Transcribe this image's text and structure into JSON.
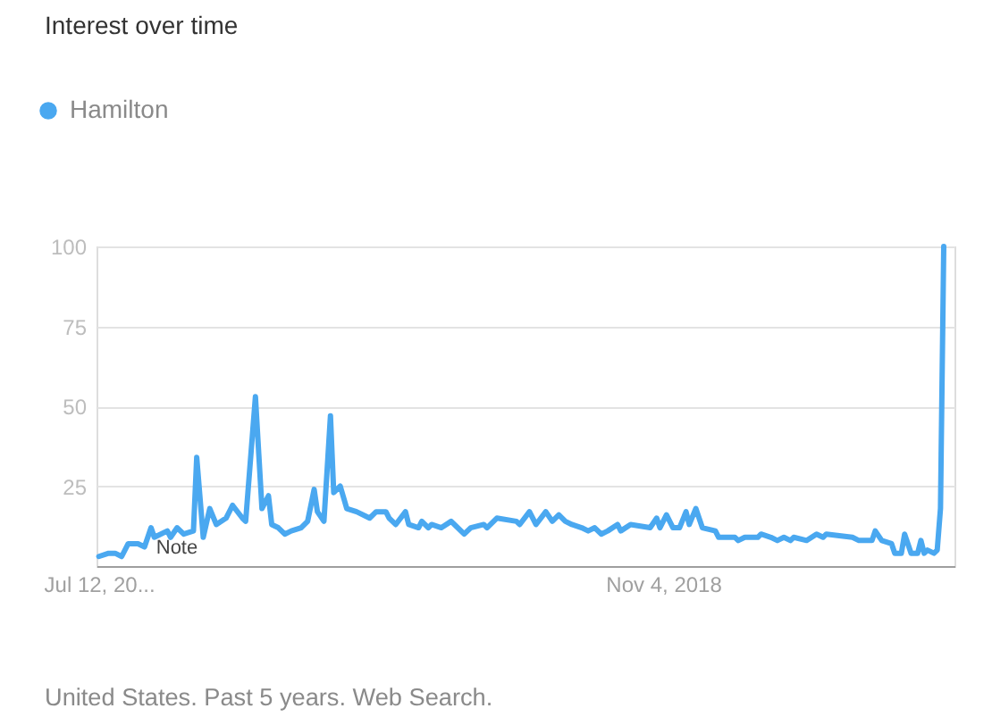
{
  "chart_data": {
    "type": "line",
    "title": "Interest over time",
    "series": [
      {
        "name": "Hamilton",
        "color": "#4aa8f0",
        "x": [
          "2015-07-12",
          "2015-08-02",
          "2015-08-16",
          "2015-08-30",
          "2015-09-13",
          "2015-10-04",
          "2015-10-18",
          "2015-11-01",
          "2015-11-08",
          "2015-12-06",
          "2015-12-13",
          "2015-12-27",
          "2016-01-10",
          "2016-01-31",
          "2016-02-07",
          "2016-02-21",
          "2016-03-06",
          "2016-03-20",
          "2016-04-10",
          "2016-04-24",
          "2016-05-15",
          "2016-05-22",
          "2016-06-12",
          "2016-06-26",
          "2016-07-10",
          "2016-07-17",
          "2016-07-31",
          "2016-08-14",
          "2016-08-28",
          "2016-09-18",
          "2016-10-02",
          "2016-10-16",
          "2016-10-23",
          "2016-11-06",
          "2016-11-20",
          "2016-11-27",
          "2016-12-11",
          "2016-12-25",
          "2017-01-15",
          "2017-02-12",
          "2017-02-26",
          "2017-03-19",
          "2017-03-26",
          "2017-04-09",
          "2017-04-30",
          "2017-05-07",
          "2017-05-28",
          "2017-06-04",
          "2017-06-18",
          "2017-06-25",
          "2017-07-16",
          "2017-08-06",
          "2017-09-03",
          "2017-09-17",
          "2017-10-15",
          "2017-10-22",
          "2017-11-12",
          "2017-12-24",
          "2017-12-31",
          "2018-01-21",
          "2018-02-04",
          "2018-02-25",
          "2018-03-11",
          "2018-03-25",
          "2018-04-08",
          "2018-04-22",
          "2018-05-13",
          "2018-05-27",
          "2018-06-10",
          "2018-06-24",
          "2018-07-08",
          "2018-07-29",
          "2018-08-05",
          "2018-08-26",
          "2018-10-07",
          "2018-10-21",
          "2018-10-28",
          "2018-11-11",
          "2018-11-25",
          "2018-12-09",
          "2018-12-23",
          "2018-12-30",
          "2019-01-13",
          "2019-01-27",
          "2019-02-24",
          "2019-03-03",
          "2019-04-07",
          "2019-04-14",
          "2019-04-28",
          "2019-05-26",
          "2019-06-02",
          "2019-06-23",
          "2019-07-07",
          "2019-07-21",
          "2019-08-04",
          "2019-08-11",
          "2019-09-08",
          "2019-09-29",
          "2019-10-13",
          "2019-10-20",
          "2019-12-15",
          "2019-12-29",
          "2020-01-26",
          "2020-02-02",
          "2020-02-16",
          "2020-03-08",
          "2020-03-15",
          "2020-03-29",
          "2020-04-05",
          "2020-04-19",
          "2020-05-03",
          "2020-05-10",
          "2020-05-17",
          "2020-05-24",
          "2020-06-07",
          "2020-06-14",
          "2020-06-21",
          "2020-06-28"
        ],
        "values": [
          3,
          4,
          4,
          3,
          7,
          7,
          6,
          12,
          9,
          11,
          9,
          12,
          10,
          11,
          34,
          9,
          18,
          13,
          15,
          19,
          15,
          14,
          53,
          18,
          22,
          13,
          12,
          10,
          11,
          12,
          14,
          24,
          17,
          14,
          47,
          23,
          25,
          18,
          17,
          15,
          17,
          17,
          15,
          13,
          17,
          13,
          12,
          14,
          12,
          13,
          12,
          14,
          10,
          12,
          13,
          12,
          15,
          14,
          13,
          17,
          13,
          17,
          14,
          16,
          14,
          13,
          12,
          11,
          12,
          10,
          11,
          13,
          11,
          13,
          12,
          15,
          12,
          16,
          12,
          12,
          17,
          13,
          18,
          12,
          11,
          9,
          9,
          8,
          9,
          9,
          10,
          9,
          8,
          9,
          8,
          9,
          8,
          10,
          9,
          10,
          9,
          8,
          8,
          11,
          8,
          7,
          4,
          4,
          10,
          4,
          4,
          8,
          4,
          5,
          4,
          5,
          18,
          100
        ]
      }
    ],
    "xlim": [
      "2015-07-07",
      "2020-07-21"
    ],
    "xticks": [
      {
        "value": "2015-07-12",
        "label": "Jul 12, 20..."
      },
      {
        "value": "2018-11-04",
        "label": "Nov 4, 2018"
      }
    ],
    "ylim": [
      0,
      100
    ],
    "yticks": [
      25,
      50,
      75,
      100
    ],
    "grid": "y",
    "legend": "top left",
    "line_style": "solid",
    "annotations": [
      "Note",
      "United States. Past 5 years. Web Search."
    ]
  }
}
